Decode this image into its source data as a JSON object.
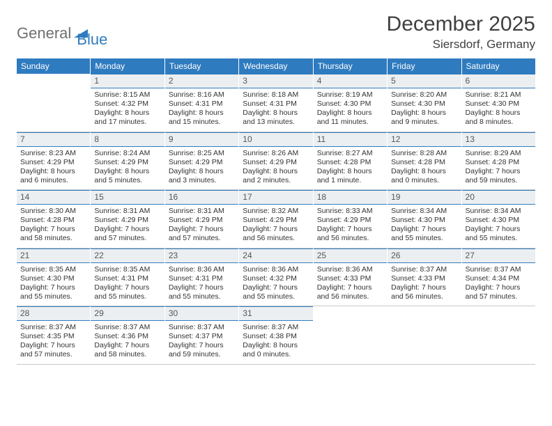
{
  "logo": {
    "part1": "General",
    "part2": "Blue"
  },
  "title": "December 2025",
  "subtitle": "Siersdorf, Germany",
  "day_headers": [
    "Sunday",
    "Monday",
    "Tuesday",
    "Wednesday",
    "Thursday",
    "Friday",
    "Saturday"
  ],
  "colors": {
    "header_bg": "#2f7bbf",
    "header_text": "#ffffff",
    "daynum_bg": "#eceff1",
    "border": "#c8c8c8",
    "logo_gray": "#707070",
    "logo_blue": "#2f7bbf"
  },
  "weeks": [
    [
      {
        "n": "",
        "sr": "",
        "ss": "",
        "dl": ""
      },
      {
        "n": "1",
        "sr": "Sunrise: 8:15 AM",
        "ss": "Sunset: 4:32 PM",
        "dl": "Daylight: 8 hours and 17 minutes."
      },
      {
        "n": "2",
        "sr": "Sunrise: 8:16 AM",
        "ss": "Sunset: 4:31 PM",
        "dl": "Daylight: 8 hours and 15 minutes."
      },
      {
        "n": "3",
        "sr": "Sunrise: 8:18 AM",
        "ss": "Sunset: 4:31 PM",
        "dl": "Daylight: 8 hours and 13 minutes."
      },
      {
        "n": "4",
        "sr": "Sunrise: 8:19 AM",
        "ss": "Sunset: 4:30 PM",
        "dl": "Daylight: 8 hours and 11 minutes."
      },
      {
        "n": "5",
        "sr": "Sunrise: 8:20 AM",
        "ss": "Sunset: 4:30 PM",
        "dl": "Daylight: 8 hours and 9 minutes."
      },
      {
        "n": "6",
        "sr": "Sunrise: 8:21 AM",
        "ss": "Sunset: 4:30 PM",
        "dl": "Daylight: 8 hours and 8 minutes."
      }
    ],
    [
      {
        "n": "7",
        "sr": "Sunrise: 8:23 AM",
        "ss": "Sunset: 4:29 PM",
        "dl": "Daylight: 8 hours and 6 minutes."
      },
      {
        "n": "8",
        "sr": "Sunrise: 8:24 AM",
        "ss": "Sunset: 4:29 PM",
        "dl": "Daylight: 8 hours and 5 minutes."
      },
      {
        "n": "9",
        "sr": "Sunrise: 8:25 AM",
        "ss": "Sunset: 4:29 PM",
        "dl": "Daylight: 8 hours and 3 minutes."
      },
      {
        "n": "10",
        "sr": "Sunrise: 8:26 AM",
        "ss": "Sunset: 4:29 PM",
        "dl": "Daylight: 8 hours and 2 minutes."
      },
      {
        "n": "11",
        "sr": "Sunrise: 8:27 AM",
        "ss": "Sunset: 4:28 PM",
        "dl": "Daylight: 8 hours and 1 minute."
      },
      {
        "n": "12",
        "sr": "Sunrise: 8:28 AM",
        "ss": "Sunset: 4:28 PM",
        "dl": "Daylight: 8 hours and 0 minutes."
      },
      {
        "n": "13",
        "sr": "Sunrise: 8:29 AM",
        "ss": "Sunset: 4:28 PM",
        "dl": "Daylight: 7 hours and 59 minutes."
      }
    ],
    [
      {
        "n": "14",
        "sr": "Sunrise: 8:30 AM",
        "ss": "Sunset: 4:28 PM",
        "dl": "Daylight: 7 hours and 58 minutes."
      },
      {
        "n": "15",
        "sr": "Sunrise: 8:31 AM",
        "ss": "Sunset: 4:29 PM",
        "dl": "Daylight: 7 hours and 57 minutes."
      },
      {
        "n": "16",
        "sr": "Sunrise: 8:31 AM",
        "ss": "Sunset: 4:29 PM",
        "dl": "Daylight: 7 hours and 57 minutes."
      },
      {
        "n": "17",
        "sr": "Sunrise: 8:32 AM",
        "ss": "Sunset: 4:29 PM",
        "dl": "Daylight: 7 hours and 56 minutes."
      },
      {
        "n": "18",
        "sr": "Sunrise: 8:33 AM",
        "ss": "Sunset: 4:29 PM",
        "dl": "Daylight: 7 hours and 56 minutes."
      },
      {
        "n": "19",
        "sr": "Sunrise: 8:34 AM",
        "ss": "Sunset: 4:30 PM",
        "dl": "Daylight: 7 hours and 55 minutes."
      },
      {
        "n": "20",
        "sr": "Sunrise: 8:34 AM",
        "ss": "Sunset: 4:30 PM",
        "dl": "Daylight: 7 hours and 55 minutes."
      }
    ],
    [
      {
        "n": "21",
        "sr": "Sunrise: 8:35 AM",
        "ss": "Sunset: 4:30 PM",
        "dl": "Daylight: 7 hours and 55 minutes."
      },
      {
        "n": "22",
        "sr": "Sunrise: 8:35 AM",
        "ss": "Sunset: 4:31 PM",
        "dl": "Daylight: 7 hours and 55 minutes."
      },
      {
        "n": "23",
        "sr": "Sunrise: 8:36 AM",
        "ss": "Sunset: 4:31 PM",
        "dl": "Daylight: 7 hours and 55 minutes."
      },
      {
        "n": "24",
        "sr": "Sunrise: 8:36 AM",
        "ss": "Sunset: 4:32 PM",
        "dl": "Daylight: 7 hours and 55 minutes."
      },
      {
        "n": "25",
        "sr": "Sunrise: 8:36 AM",
        "ss": "Sunset: 4:33 PM",
        "dl": "Daylight: 7 hours and 56 minutes."
      },
      {
        "n": "26",
        "sr": "Sunrise: 8:37 AM",
        "ss": "Sunset: 4:33 PM",
        "dl": "Daylight: 7 hours and 56 minutes."
      },
      {
        "n": "27",
        "sr": "Sunrise: 8:37 AM",
        "ss": "Sunset: 4:34 PM",
        "dl": "Daylight: 7 hours and 57 minutes."
      }
    ],
    [
      {
        "n": "28",
        "sr": "Sunrise: 8:37 AM",
        "ss": "Sunset: 4:35 PM",
        "dl": "Daylight: 7 hours and 57 minutes."
      },
      {
        "n": "29",
        "sr": "Sunrise: 8:37 AM",
        "ss": "Sunset: 4:36 PM",
        "dl": "Daylight: 7 hours and 58 minutes."
      },
      {
        "n": "30",
        "sr": "Sunrise: 8:37 AM",
        "ss": "Sunset: 4:37 PM",
        "dl": "Daylight: 7 hours and 59 minutes."
      },
      {
        "n": "31",
        "sr": "Sunrise: 8:37 AM",
        "ss": "Sunset: 4:38 PM",
        "dl": "Daylight: 8 hours and 0 minutes."
      },
      {
        "n": "",
        "sr": "",
        "ss": "",
        "dl": ""
      },
      {
        "n": "",
        "sr": "",
        "ss": "",
        "dl": ""
      },
      {
        "n": "",
        "sr": "",
        "ss": "",
        "dl": ""
      }
    ]
  ]
}
